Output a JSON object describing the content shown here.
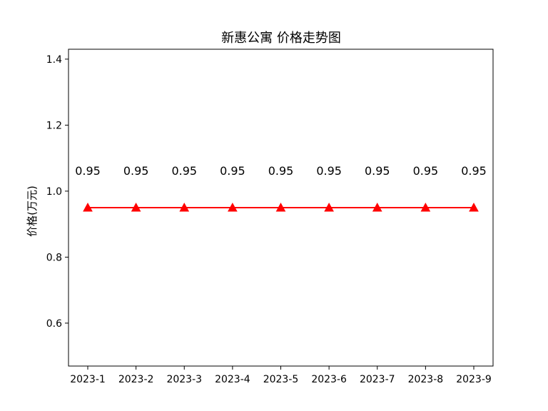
{
  "chart_data": {
    "type": "line",
    "title": "新惠公寓 价格走势图",
    "xlabel": "",
    "ylabel": "价格(万元)",
    "categories": [
      "2023-1",
      "2023-2",
      "2023-3",
      "2023-4",
      "2023-5",
      "2023-6",
      "2023-7",
      "2023-8",
      "2023-9"
    ],
    "series": [
      {
        "values": [
          0.95,
          0.95,
          0.95,
          0.95,
          0.95,
          0.95,
          0.95,
          0.95,
          0.95
        ],
        "data_labels": [
          "0.95",
          "0.95",
          "0.95",
          "0.95",
          "0.95",
          "0.95",
          "0.95",
          "0.95",
          "0.95"
        ],
        "color": "#ff0000",
        "marker": "triangle"
      }
    ],
    "ylim": [
      0.47,
      1.43
    ],
    "yticks": [
      0.6,
      0.8,
      1.0,
      1.2,
      1.4
    ],
    "ytick_labels": [
      "0.6",
      "0.8",
      "1.0",
      "1.2",
      "1.4"
    ],
    "grid": false,
    "legend": "none"
  }
}
